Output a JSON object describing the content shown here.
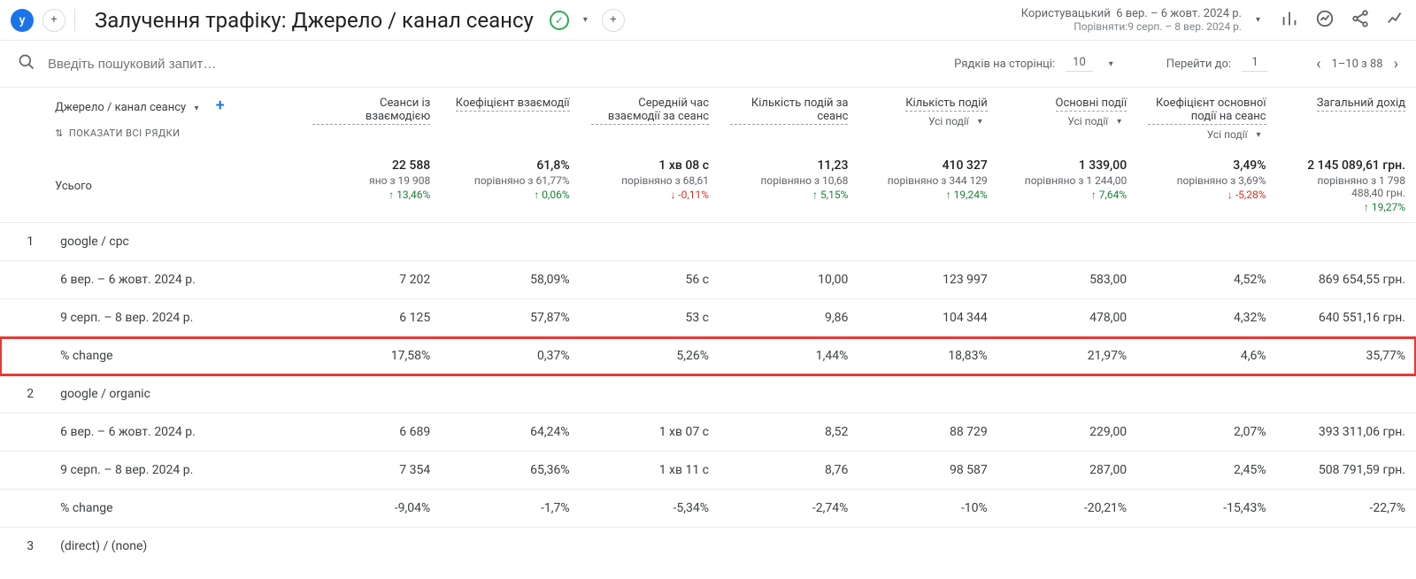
{
  "header": {
    "avatar_letter": "y",
    "title": "Залучення трафіку: Джерело / канал сеансу",
    "date_label": "Користувацький",
    "date_primary": "6 вер. – 6 жовт. 2024 р.",
    "date_compare": "Порівняти:9 серп. – 8 вер. 2024 р."
  },
  "search": {
    "placeholder": "Введіть пошуковий запит…"
  },
  "pager": {
    "rows_label": "Рядків на сторінці:",
    "rows_value": "10",
    "goto_label": "Перейти до:",
    "goto_value": "1",
    "range": "1–10 з 88"
  },
  "dimension": {
    "label": "Джерело / канал сеансу",
    "show_all": "ПОКАЗАТИ ВСІ РЯДКИ"
  },
  "metrics": [
    {
      "h": "Сеанси із взаємодією",
      "sub": null
    },
    {
      "h": "Коефіцієнт взаємодії",
      "sub": null
    },
    {
      "h": "Середній час взаємодії за сеанс",
      "sub": null
    },
    {
      "h": "Кількість подій за сеанс",
      "sub": null
    },
    {
      "h": "Кількість подій",
      "sub": "Усі події"
    },
    {
      "h": "Основні події",
      "sub": "Усі події"
    },
    {
      "h": "Коефіцієнт основної події на сеанс",
      "sub": "Усі події"
    },
    {
      "h": "Загальний дохід",
      "sub": null
    }
  ],
  "totals": {
    "label": "Усього",
    "cells": [
      {
        "v": "22 588",
        "c": "яно з 19 908",
        "p": "13,46%",
        "d": "up"
      },
      {
        "v": "61,8%",
        "c": "порівняно з 61,77%",
        "p": "0,06%",
        "d": "up"
      },
      {
        "v": "1 хв 08 с",
        "c": "порівняно з 68,61",
        "p": "-0,11%",
        "d": "down"
      },
      {
        "v": "11,23",
        "c": "порівняно з 10,68",
        "p": "5,15%",
        "d": "up"
      },
      {
        "v": "410 327",
        "c": "порівняно з 344 129",
        "p": "19,24%",
        "d": "up"
      },
      {
        "v": "1 339,00",
        "c": "порівняно з 1 244,00",
        "p": "7,64%",
        "d": "up"
      },
      {
        "v": "3,49%",
        "c": "порівняно з 3,69%",
        "p": "-5,28%",
        "d": "down"
      },
      {
        "v": "2 145 089,61 грн.",
        "c": "порівняно з 1 798 488,40 грн.",
        "p": "19,27%",
        "d": "up"
      }
    ]
  },
  "rows": [
    {
      "idx": "1",
      "label": "google / cpc",
      "hl": false,
      "vals": null
    },
    {
      "idx": "",
      "label": "6 вер. – 6 жовт. 2024 р.",
      "hl": false,
      "vals": [
        "7 202",
        "58,09%",
        "56 с",
        "10,00",
        "123 997",
        "583,00",
        "4,52%",
        "869 654,55 грн."
      ]
    },
    {
      "idx": "",
      "label": "9 серп. – 8 вер. 2024 р.",
      "hl": false,
      "vals": [
        "6 125",
        "57,87%",
        "53 с",
        "9,86",
        "104 344",
        "478,00",
        "4,32%",
        "640 551,16 грн."
      ]
    },
    {
      "idx": "",
      "label": "% change",
      "hl": true,
      "vals": [
        "17,58%",
        "0,37%",
        "5,26%",
        "1,44%",
        "18,83%",
        "21,97%",
        "4,6%",
        "35,77%"
      ]
    },
    {
      "idx": "2",
      "label": "google / organic",
      "hl": false,
      "vals": null
    },
    {
      "idx": "",
      "label": "6 вер. – 6 жовт. 2024 р.",
      "hl": false,
      "vals": [
        "6 689",
        "64,24%",
        "1 хв 07 с",
        "8,52",
        "88 729",
        "229,00",
        "2,07%",
        "393 311,06 грн."
      ]
    },
    {
      "idx": "",
      "label": "9 серп. – 8 вер. 2024 р.",
      "hl": false,
      "vals": [
        "7 354",
        "65,36%",
        "1 хв 11 с",
        "8,76",
        "98 587",
        "287,00",
        "2,45%",
        "508 791,59 грн."
      ]
    },
    {
      "idx": "",
      "label": "% change",
      "hl": false,
      "vals": [
        "-9,04%",
        "-1,7%",
        "-5,34%",
        "-2,74%",
        "-10%",
        "-20,21%",
        "-15,43%",
        "-22,7%"
      ]
    },
    {
      "idx": "3",
      "label": "(direct) / (none)",
      "hl": false,
      "vals": null
    }
  ]
}
